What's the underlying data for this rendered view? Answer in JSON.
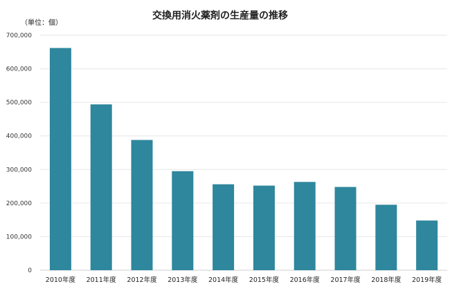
{
  "chart_data": {
    "type": "bar",
    "title": "交換用消火薬剤の生産量の推移",
    "unit_label": "（単位：個）",
    "categories": [
      "2010年度",
      "2011年度",
      "2012年度",
      "2013年度",
      "2014年度",
      "2015年度",
      "2016年度",
      "2017年度",
      "2018年度",
      "2019年度"
    ],
    "values": [
      662000,
      494000,
      388000,
      295000,
      256000,
      252000,
      263000,
      248000,
      195000,
      148000
    ],
    "ylim": [
      0,
      700000
    ],
    "yticks": [
      0,
      100000,
      200000,
      300000,
      400000,
      500000,
      600000,
      700000
    ],
    "ytick_labels": [
      "0",
      "100,000",
      "200,000",
      "300,000",
      "400,000",
      "500,000",
      "600,000",
      "700,000"
    ],
    "grid": true,
    "bar_color": "#2e879d"
  }
}
